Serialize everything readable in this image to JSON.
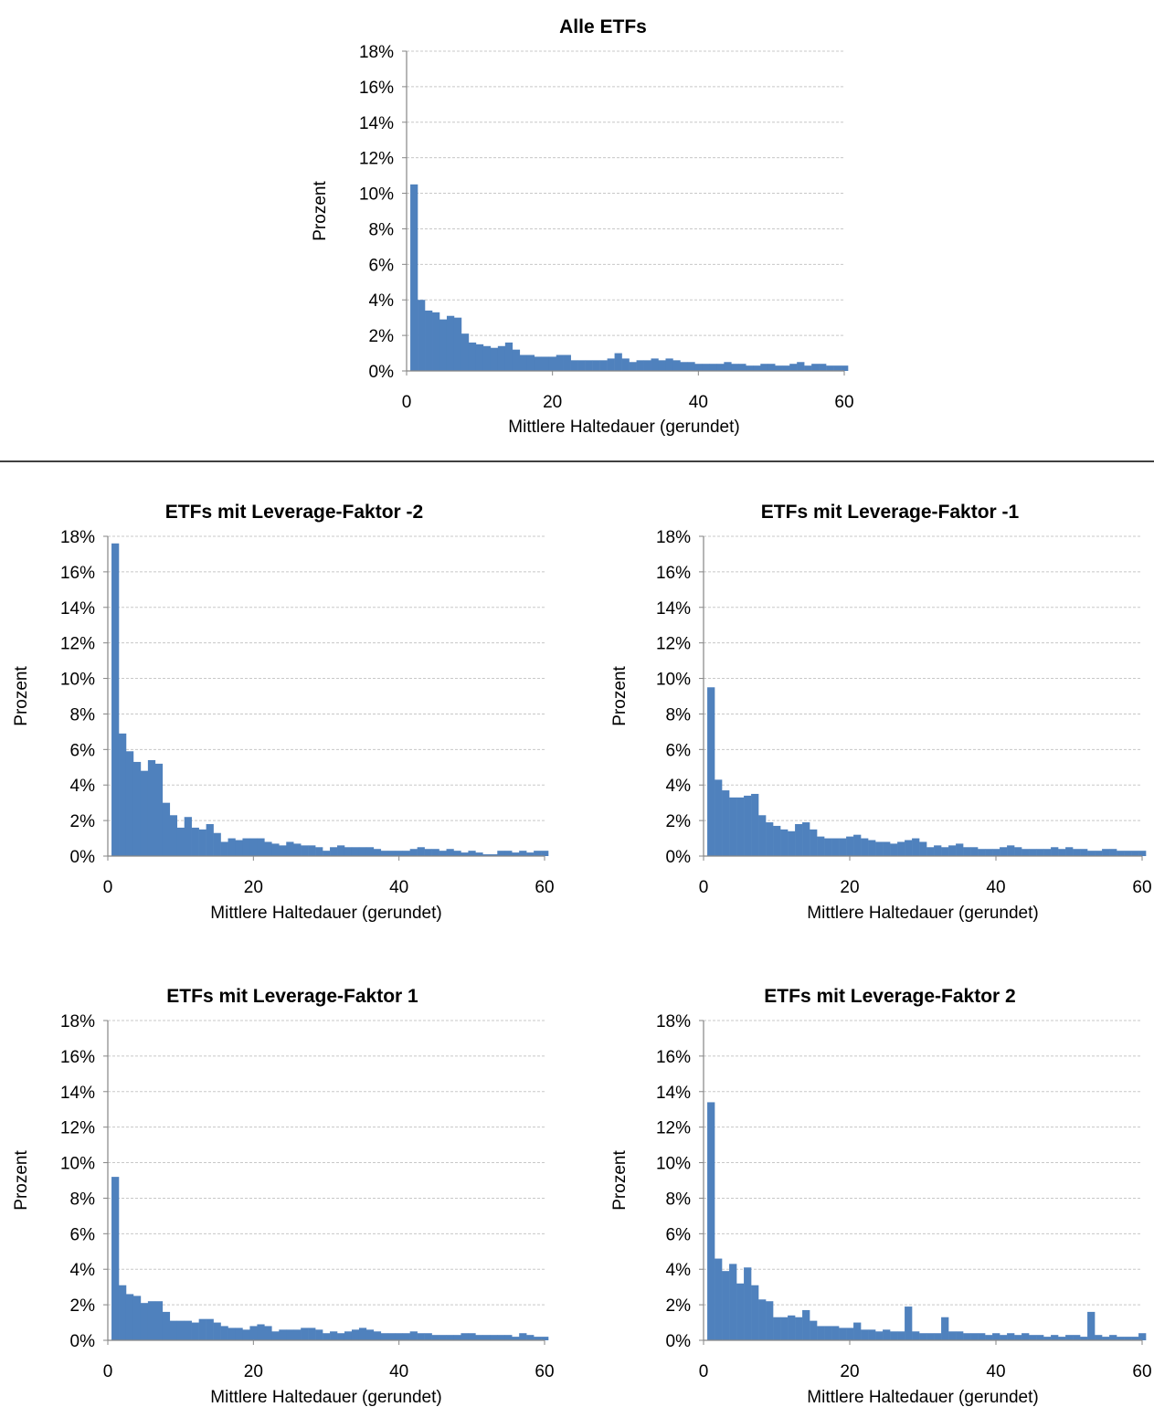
{
  "chart_data": [
    {
      "type": "bar",
      "title": "Alle ETFs",
      "xlabel": "Mittlere Haltedauer (gerundet)",
      "ylabel": "Prozent",
      "xlim": [
        0,
        60
      ],
      "ylim": [
        0,
        18
      ],
      "x_ticks": [
        "0",
        "20",
        "40",
        "60"
      ],
      "y_ticks": [
        "0%",
        "2%",
        "4%",
        "6%",
        "8%",
        "10%",
        "12%",
        "14%",
        "16%",
        "18%"
      ],
      "grid": true,
      "color": "#4f81bd",
      "x": [
        1,
        2,
        3,
        4,
        5,
        6,
        7,
        8,
        9,
        10,
        11,
        12,
        13,
        14,
        15,
        16,
        17,
        18,
        19,
        20,
        21,
        22,
        23,
        24,
        25,
        26,
        27,
        28,
        29,
        30,
        31,
        32,
        33,
        34,
        35,
        36,
        37,
        38,
        39,
        40,
        41,
        42,
        43,
        44,
        45,
        46,
        47,
        48,
        49,
        50,
        51,
        52,
        53,
        54,
        55,
        56,
        57,
        58,
        59,
        60
      ],
      "values": [
        10.5,
        4.0,
        3.4,
        3.3,
        2.9,
        3.1,
        3.0,
        2.1,
        1.6,
        1.5,
        1.4,
        1.3,
        1.4,
        1.6,
        1.2,
        0.9,
        0.9,
        0.8,
        0.8,
        0.8,
        0.9,
        0.9,
        0.6,
        0.6,
        0.6,
        0.6,
        0.6,
        0.7,
        1.0,
        0.7,
        0.5,
        0.6,
        0.6,
        0.7,
        0.6,
        0.7,
        0.6,
        0.5,
        0.5,
        0.4,
        0.4,
        0.4,
        0.4,
        0.5,
        0.4,
        0.4,
        0.3,
        0.3,
        0.4,
        0.4,
        0.3,
        0.3,
        0.4,
        0.5,
        0.3,
        0.4,
        0.4,
        0.3,
        0.3,
        0.3
      ]
    },
    {
      "type": "bar",
      "title": "ETFs mit Leverage-Faktor -2",
      "xlabel": "Mittlere Haltedauer (gerundet)",
      "ylabel": "Prozent",
      "xlim": [
        0,
        60
      ],
      "ylim": [
        0,
        18
      ],
      "x_ticks": [
        "0",
        "20",
        "40",
        "60"
      ],
      "y_ticks": [
        "0%",
        "2%",
        "4%",
        "6%",
        "8%",
        "10%",
        "12%",
        "14%",
        "16%",
        "18%"
      ],
      "grid": true,
      "color": "#4f81bd",
      "x": [
        1,
        2,
        3,
        4,
        5,
        6,
        7,
        8,
        9,
        10,
        11,
        12,
        13,
        14,
        15,
        16,
        17,
        18,
        19,
        20,
        21,
        22,
        23,
        24,
        25,
        26,
        27,
        28,
        29,
        30,
        31,
        32,
        33,
        34,
        35,
        36,
        37,
        38,
        39,
        40,
        41,
        42,
        43,
        44,
        45,
        46,
        47,
        48,
        49,
        50,
        51,
        52,
        53,
        54,
        55,
        56,
        57,
        58,
        59,
        60
      ],
      "values": [
        17.6,
        6.9,
        5.9,
        5.3,
        4.8,
        5.4,
        5.2,
        3.0,
        2.3,
        1.6,
        2.2,
        1.6,
        1.5,
        1.8,
        1.3,
        0.8,
        1.0,
        0.9,
        1.0,
        1.0,
        1.0,
        0.8,
        0.7,
        0.6,
        0.8,
        0.7,
        0.6,
        0.6,
        0.5,
        0.3,
        0.5,
        0.6,
        0.5,
        0.5,
        0.5,
        0.5,
        0.4,
        0.3,
        0.3,
        0.3,
        0.3,
        0.4,
        0.5,
        0.4,
        0.4,
        0.3,
        0.4,
        0.3,
        0.2,
        0.3,
        0.2,
        0.1,
        0.1,
        0.3,
        0.3,
        0.2,
        0.3,
        0.2,
        0.3,
        0.3
      ]
    },
    {
      "type": "bar",
      "title": "ETFs mit Leverage-Faktor -1",
      "xlabel": "Mittlere Haltedauer (gerundet)",
      "ylabel": "Prozent",
      "xlim": [
        0,
        60
      ],
      "ylim": [
        0,
        18
      ],
      "x_ticks": [
        "0",
        "20",
        "40",
        "60"
      ],
      "y_ticks": [
        "0%",
        "2%",
        "4%",
        "6%",
        "8%",
        "10%",
        "12%",
        "14%",
        "16%",
        "18%"
      ],
      "grid": true,
      "color": "#4f81bd",
      "x": [
        1,
        2,
        3,
        4,
        5,
        6,
        7,
        8,
        9,
        10,
        11,
        12,
        13,
        14,
        15,
        16,
        17,
        18,
        19,
        20,
        21,
        22,
        23,
        24,
        25,
        26,
        27,
        28,
        29,
        30,
        31,
        32,
        33,
        34,
        35,
        36,
        37,
        38,
        39,
        40,
        41,
        42,
        43,
        44,
        45,
        46,
        47,
        48,
        49,
        50,
        51,
        52,
        53,
        54,
        55,
        56,
        57,
        58,
        59,
        60
      ],
      "values": [
        9.5,
        4.3,
        3.7,
        3.3,
        3.3,
        3.4,
        3.5,
        2.3,
        1.9,
        1.7,
        1.5,
        1.4,
        1.8,
        1.9,
        1.5,
        1.1,
        1.0,
        1.0,
        1.0,
        1.1,
        1.2,
        1.0,
        0.9,
        0.8,
        0.8,
        0.7,
        0.8,
        0.9,
        1.0,
        0.8,
        0.5,
        0.6,
        0.5,
        0.6,
        0.7,
        0.5,
        0.5,
        0.4,
        0.4,
        0.4,
        0.5,
        0.6,
        0.5,
        0.4,
        0.4,
        0.4,
        0.4,
        0.5,
        0.4,
        0.5,
        0.4,
        0.4,
        0.3,
        0.3,
        0.4,
        0.4,
        0.3,
        0.3,
        0.3,
        0.3
      ]
    },
    {
      "type": "bar",
      "title": "ETFs mit Leverage-Faktor 1",
      "xlabel": "Mittlere Haltedauer (gerundet)",
      "ylabel": "Prozent",
      "xlim": [
        0,
        60
      ],
      "ylim": [
        0,
        18
      ],
      "x_ticks": [
        "0",
        "20",
        "40",
        "60"
      ],
      "y_ticks": [
        "0%",
        "2%",
        "4%",
        "6%",
        "8%",
        "10%",
        "12%",
        "14%",
        "16%",
        "18%"
      ],
      "grid": true,
      "color": "#4f81bd",
      "x": [
        1,
        2,
        3,
        4,
        5,
        6,
        7,
        8,
        9,
        10,
        11,
        12,
        13,
        14,
        15,
        16,
        17,
        18,
        19,
        20,
        21,
        22,
        23,
        24,
        25,
        26,
        27,
        28,
        29,
        30,
        31,
        32,
        33,
        34,
        35,
        36,
        37,
        38,
        39,
        40,
        41,
        42,
        43,
        44,
        45,
        46,
        47,
        48,
        49,
        50,
        51,
        52,
        53,
        54,
        55,
        56,
        57,
        58,
        59,
        60
      ],
      "values": [
        9.2,
        3.1,
        2.6,
        2.5,
        2.1,
        2.2,
        2.2,
        1.6,
        1.1,
        1.1,
        1.1,
        1.0,
        1.2,
        1.2,
        1.0,
        0.8,
        0.7,
        0.7,
        0.6,
        0.8,
        0.9,
        0.8,
        0.5,
        0.6,
        0.6,
        0.6,
        0.7,
        0.7,
        0.6,
        0.4,
        0.5,
        0.4,
        0.5,
        0.6,
        0.7,
        0.6,
        0.5,
        0.4,
        0.4,
        0.4,
        0.4,
        0.5,
        0.4,
        0.4,
        0.3,
        0.3,
        0.3,
        0.3,
        0.4,
        0.4,
        0.3,
        0.3,
        0.3,
        0.3,
        0.3,
        0.2,
        0.4,
        0.3,
        0.2,
        0.2
      ]
    },
    {
      "type": "bar",
      "title": "ETFs mit Leverage-Faktor 2",
      "xlabel": "Mittlere Haltedauer (gerundet)",
      "ylabel": "Prozent",
      "xlim": [
        0,
        60
      ],
      "ylim": [
        0,
        18
      ],
      "x_ticks": [
        "0",
        "20",
        "40",
        "60"
      ],
      "y_ticks": [
        "0%",
        "2%",
        "4%",
        "6%",
        "8%",
        "10%",
        "12%",
        "14%",
        "16%",
        "18%"
      ],
      "grid": true,
      "color": "#4f81bd",
      "x": [
        1,
        2,
        3,
        4,
        5,
        6,
        7,
        8,
        9,
        10,
        11,
        12,
        13,
        14,
        15,
        16,
        17,
        18,
        19,
        20,
        21,
        22,
        23,
        24,
        25,
        26,
        27,
        28,
        29,
        30,
        31,
        32,
        33,
        34,
        35,
        36,
        37,
        38,
        39,
        40,
        41,
        42,
        43,
        44,
        45,
        46,
        47,
        48,
        49,
        50,
        51,
        52,
        53,
        54,
        55,
        56,
        57,
        58,
        59,
        60
      ],
      "values": [
        13.4,
        4.6,
        3.9,
        4.3,
        3.2,
        4.1,
        3.1,
        2.3,
        2.2,
        1.3,
        1.3,
        1.4,
        1.3,
        1.7,
        1.1,
        0.8,
        0.8,
        0.8,
        0.7,
        0.7,
        1.0,
        0.6,
        0.6,
        0.5,
        0.6,
        0.5,
        0.5,
        1.9,
        0.5,
        0.4,
        0.4,
        0.4,
        1.3,
        0.5,
        0.5,
        0.4,
        0.4,
        0.4,
        0.3,
        0.4,
        0.3,
        0.4,
        0.3,
        0.4,
        0.3,
        0.3,
        0.2,
        0.3,
        0.2,
        0.3,
        0.3,
        0.2,
        1.6,
        0.3,
        0.2,
        0.3,
        0.2,
        0.2,
        0.2,
        0.4
      ]
    }
  ]
}
